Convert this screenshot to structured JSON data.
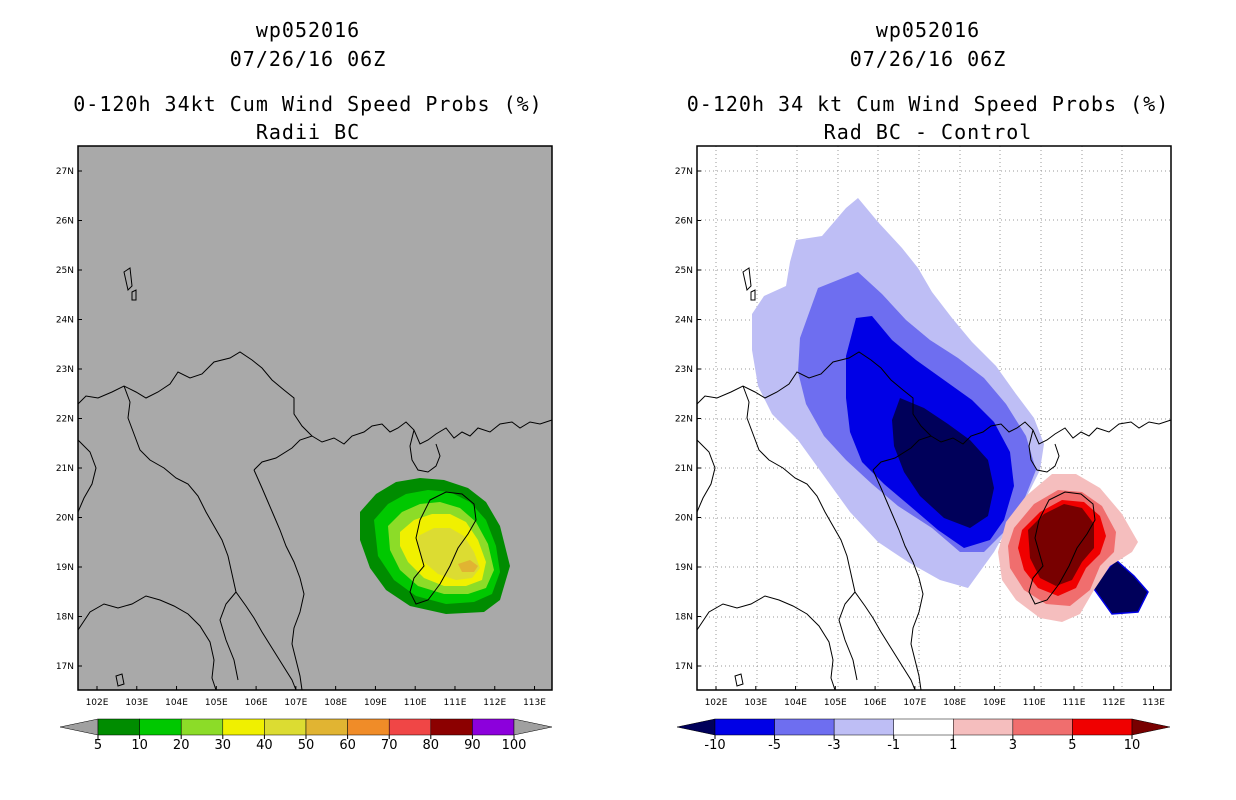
{
  "left_panel": {
    "storm": "wp052016",
    "datetime": "07/26/16 06Z",
    "product": "0-120h 34kt Cum Wind Speed Probs (%)",
    "subtitle": "Radii BC",
    "colorbar": {
      "labels": [
        "5",
        "10",
        "20",
        "30",
        "40",
        "50",
        "60",
        "70",
        "80",
        "90",
        "100"
      ],
      "colors": [
        "#008c00",
        "#00c800",
        "#8cdc28",
        "#f0f000",
        "#dcdc32",
        "#e1b432",
        "#f08c28",
        "#f04646",
        "#8c0000",
        "#8c00dc"
      ],
      "under_color": "#a0a0a0",
      "over_color": "#a0a0a0"
    }
  },
  "right_panel": {
    "storm": "wp052016",
    "datetime": "07/26/16 06Z",
    "product": "0-120h 34 kt Cum Wind Speed Probs (%)",
    "subtitle": "Rad BC - Control",
    "colorbar": {
      "labels": [
        "-10",
        "-5",
        "-3",
        "-1",
        "1",
        "3",
        "5",
        "10"
      ],
      "colors": [
        "#0000e6",
        "#6e6ef0",
        "#bebef5",
        "#ffffff",
        "#f5bebe",
        "#f06e6e",
        "#f00000"
      ],
      "under_color": "#00005a",
      "over_color": "#780000"
    }
  },
  "map_axes": {
    "lon_labels": [
      "102E",
      "103E",
      "104E",
      "105E",
      "106E",
      "107E",
      "108E",
      "109E",
      "110E",
      "111E",
      "112E",
      "113E"
    ],
    "lat_labels": [
      "27N",
      "26N",
      "25N",
      "24N",
      "23N",
      "22N",
      "21N",
      "20N",
      "19N",
      "18N",
      "17N"
    ],
    "map_background_left": "#a9a9a9"
  }
}
